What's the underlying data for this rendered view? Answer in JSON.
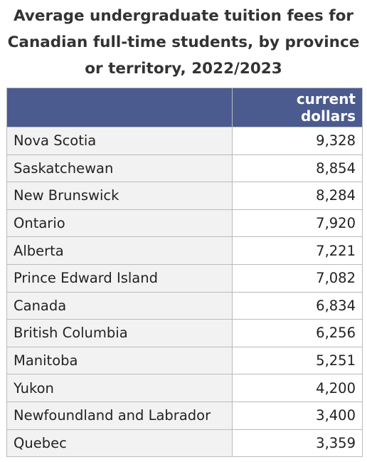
{
  "header": {
    "title": "Average undergraduate tuition fees for Canadian full-time students, by province or territory, 2022/2023"
  },
  "table": {
    "columns": [
      "current dollars"
    ],
    "rows": [
      [
        "Nova Scotia",
        "9,328"
      ],
      [
        "Saskatchewan",
        "8,854"
      ],
      [
        "New Brunswick",
        "8,284"
      ],
      [
        "Ontario",
        "7,920"
      ],
      [
        "Alberta",
        "7,221"
      ],
      [
        "Prince Edward Island",
        "7,082"
      ],
      [
        "Canada",
        "6,834"
      ],
      [
        "British Columbia",
        "6,256"
      ],
      [
        "Manitoba",
        "5,251"
      ],
      [
        "Yukon",
        "4,200"
      ],
      [
        "Newfoundland and Labrador",
        "3,400"
      ],
      [
        "Quebec",
        "3,359"
      ]
    ]
  }
}
